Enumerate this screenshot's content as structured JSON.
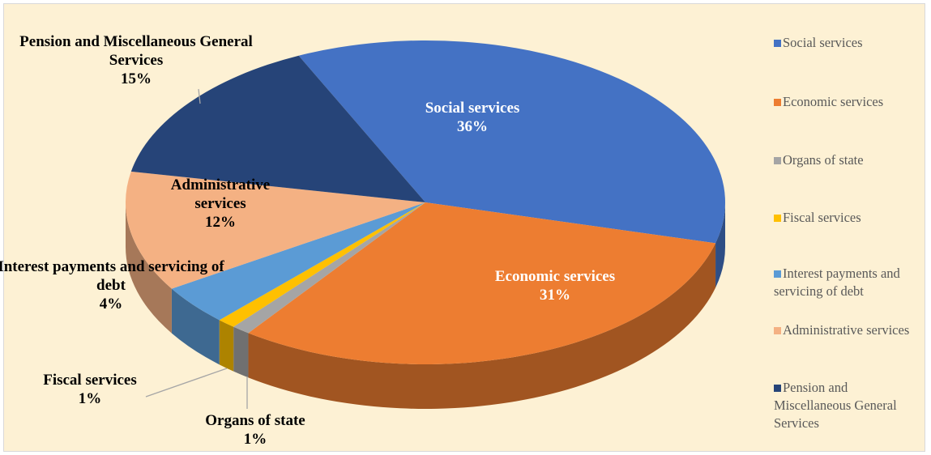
{
  "chart_data": {
    "type": "pie",
    "categories": [
      "Social services",
      "Economic services",
      "Organs of state",
      "Fiscal services",
      "Interest payments and servicing of debt",
      "Administrative services",
      "Pension and Miscellaneous General Services"
    ],
    "values": [
      36,
      31,
      1,
      1,
      4,
      12,
      15
    ],
    "value_labels": [
      "36%",
      "31%",
      "1%",
      "1%",
      "4%",
      "12%",
      "15%"
    ],
    "colors": [
      "#4472c4",
      "#ed7d31",
      "#a5a5a5",
      "#ffc000",
      "#5b9bd5",
      "#f4b183",
      "#264478"
    ],
    "legend": "right"
  }
}
